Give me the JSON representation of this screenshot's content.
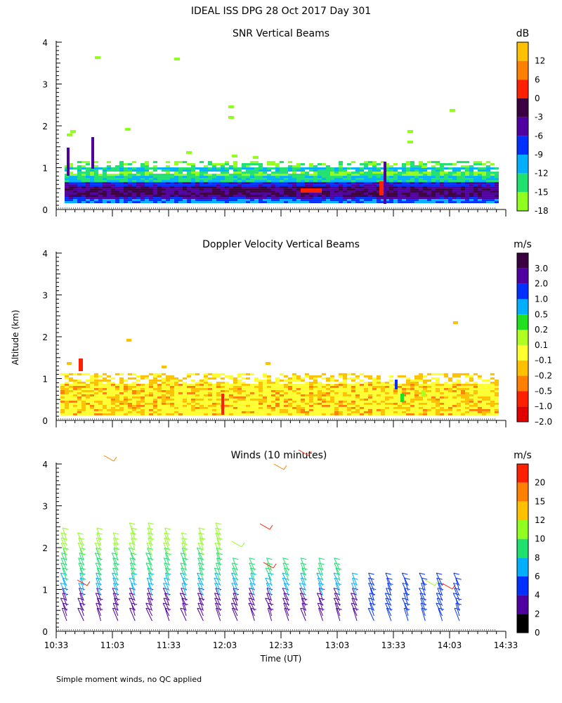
{
  "figure": {
    "title": "IDEAL ISS DPG  28 Oct 2017 Day 301",
    "ylabel": "Altitude (km)",
    "xlabel": "Time (UT)",
    "footnote": "Simple moment winds, no QC applied"
  },
  "chart_data": [
    {
      "type": "heatmap",
      "title": "SNR Vertical Beams",
      "unit": "dB",
      "x_ticks": [
        "10:33",
        "11:03",
        "11:33",
        "12:03",
        "12:33",
        "13:03",
        "13:33",
        "14:03",
        "14:33"
      ],
      "y_ticks": [
        "0",
        "1",
        "2",
        "3",
        "4"
      ],
      "xlim": [
        "10:33",
        "14:33"
      ],
      "ylim": [
        0,
        4
      ],
      "colorbar": {
        "labels": [
          "12",
          "6",
          "0",
          "-3",
          "-6",
          "-9",
          "-12",
          "-15",
          "-18"
        ],
        "colors": [
          "#ffc000",
          "#ff8000",
          "#ff2000",
          "#3a0040",
          "#5000a0",
          "#0030ff",
          "#00b0ff",
          "#20e070",
          "#90ff20"
        ]
      }
    },
    {
      "type": "heatmap",
      "title": "Doppler Velocity Vertical Beams",
      "unit": "m/s",
      "x_ticks": [
        "10:33",
        "11:03",
        "11:33",
        "12:03",
        "12:33",
        "13:03",
        "13:33",
        "14:03",
        "14:33"
      ],
      "y_ticks": [
        "0",
        "1",
        "2",
        "3",
        "4"
      ],
      "xlim": [
        "10:33",
        "14:33"
      ],
      "ylim": [
        0,
        4
      ],
      "colorbar": {
        "labels": [
          "3.0",
          "2.0",
          "1.0",
          "0.5",
          "0.2",
          "0.1",
          "–0.1",
          "–0.2",
          "–0.5",
          "–1.0",
          "–2.0"
        ],
        "colors": [
          "#3a0040",
          "#5000a0",
          "#0030ff",
          "#00b0ff",
          "#20e020",
          "#b0ff20",
          "#ffff30",
          "#ffc000",
          "#ff8000",
          "#ff2000",
          "#e00000"
        ]
      }
    },
    {
      "type": "scatter",
      "title": "Winds (10 minutes)",
      "unit": "m/s",
      "x_ticks": [
        "10:33",
        "11:03",
        "11:33",
        "12:03",
        "12:33",
        "13:03",
        "13:33",
        "14:03",
        "14:33"
      ],
      "y_ticks": [
        "0",
        "1",
        "2",
        "3",
        "4"
      ],
      "xlim": [
        "10:33",
        "14:33"
      ],
      "ylim": [
        0,
        4
      ],
      "colorbar": {
        "labels": [
          "20",
          "15",
          "12",
          "10",
          "8",
          "6",
          "4",
          "2",
          "0"
        ],
        "colors": [
          "#ff2000",
          "#ff8000",
          "#ffc000",
          "#90ff20",
          "#20e070",
          "#00b0ff",
          "#0030ff",
          "#5000a0",
          "#000000"
        ]
      }
    }
  ]
}
